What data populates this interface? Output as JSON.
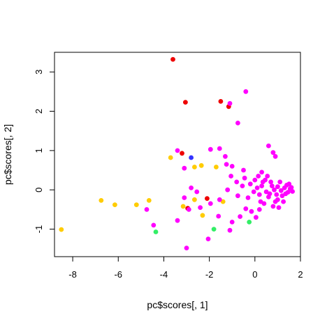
{
  "chart_data": {
    "type": "scatter",
    "title": "",
    "xlabel": "pc$scores[, 1]",
    "ylabel": "pc$scores[, 2]",
    "xlim": [
      -8.8,
      2.0
    ],
    "ylim": [
      -1.7,
      3.5
    ],
    "xticks": [
      -8,
      -6,
      -4,
      -2,
      0,
      2
    ],
    "yticks": [
      -1,
      0,
      1,
      2,
      3
    ],
    "grid": false,
    "legend": "none",
    "colors": {
      "magenta": "#ff00ff",
      "red": "#ee0000",
      "gold": "#ffcc00",
      "blue": "#3333ff",
      "green": "#33ee66"
    },
    "series": [
      {
        "color": "red",
        "points": [
          [
            -3.6,
            3.32
          ],
          [
            -3.05,
            2.23
          ],
          [
            -1.5,
            2.25
          ],
          [
            -1.15,
            2.12
          ],
          [
            -3.2,
            0.93
          ],
          [
            -2.1,
            -0.22
          ],
          [
            -2.95,
            -0.47
          ]
        ]
      },
      {
        "color": "blue",
        "points": [
          [
            -2.8,
            0.82
          ]
        ]
      },
      {
        "color": "green",
        "points": [
          [
            -4.35,
            -1.07
          ],
          [
            -1.8,
            -1.0
          ],
          [
            -0.25,
            -0.82
          ]
        ]
      },
      {
        "color": "gold",
        "points": [
          [
            -8.5,
            -1.01
          ],
          [
            -6.75,
            -0.27
          ],
          [
            -6.15,
            -0.38
          ],
          [
            -5.2,
            -0.38
          ],
          [
            -4.65,
            -0.27
          ],
          [
            -3.7,
            0.82
          ],
          [
            -3.15,
            -0.42
          ],
          [
            -2.65,
            0.58
          ],
          [
            -2.35,
            0.62
          ],
          [
            -1.7,
            0.58
          ],
          [
            -2.65,
            -0.25
          ],
          [
            -2.3,
            -0.65
          ],
          [
            -1.4,
            -0.3
          ]
        ]
      },
      {
        "color": "magenta",
        "points": [
          [
            -0.4,
            2.5
          ],
          [
            -1.1,
            2.2
          ],
          [
            -0.75,
            1.7
          ],
          [
            -3.4,
            1.0
          ],
          [
            -3.0,
            -1.48
          ],
          [
            -2.05,
            -1.25
          ],
          [
            -1.95,
            1.03
          ],
          [
            -1.55,
            1.05
          ],
          [
            -1.3,
            0.85
          ],
          [
            -1.25,
            0.65
          ],
          [
            -1.0,
            0.6
          ],
          [
            -0.5,
            0.5
          ],
          [
            0.6,
            1.12
          ],
          [
            0.8,
            0.95
          ],
          [
            0.9,
            0.85
          ],
          [
            -3.1,
            0.55
          ],
          [
            -2.8,
            0.05
          ],
          [
            -2.55,
            -0.05
          ],
          [
            -3.1,
            -0.2
          ],
          [
            -2.9,
            -0.5
          ],
          [
            -3.4,
            -0.78
          ],
          [
            -2.4,
            -0.45
          ],
          [
            -1.95,
            -0.35
          ],
          [
            -1.55,
            -0.25
          ],
          [
            -4.75,
            -0.5
          ],
          [
            -4.45,
            -0.9
          ],
          [
            -1.6,
            -0.67
          ],
          [
            -1.1,
            -1.03
          ],
          [
            -1.0,
            -0.82
          ],
          [
            -0.65,
            -0.68
          ],
          [
            -0.4,
            -0.48
          ],
          [
            -0.15,
            -0.55
          ],
          [
            -1.2,
            0.0
          ],
          [
            -1.05,
            0.35
          ],
          [
            -0.8,
            0.2
          ],
          [
            -0.55,
            0.1
          ],
          [
            -0.3,
            -0.2
          ],
          [
            -0.75,
            -0.15
          ],
          [
            -0.45,
            0.3
          ],
          [
            0.0,
            0.25
          ],
          [
            0.3,
            0.45
          ],
          [
            0.05,
            -0.7
          ],
          [
            0.2,
            -0.5
          ],
          [
            0.4,
            -0.35
          ],
          [
            0.6,
            -0.18
          ],
          [
            0.8,
            -0.42
          ],
          [
            1.0,
            -0.25
          ],
          [
            1.05,
            -0.45
          ],
          [
            0.1,
            0.05
          ],
          [
            0.3,
            0.1
          ],
          [
            0.5,
            -0.05
          ],
          [
            0.7,
            0.2
          ],
          [
            0.85,
            0.0
          ],
          [
            1.0,
            0.08
          ],
          [
            1.15,
            -0.02
          ],
          [
            1.3,
            0.05
          ],
          [
            1.45,
            -0.06
          ],
          [
            1.55,
            0.03
          ],
          [
            1.65,
            -0.04
          ],
          [
            0.45,
            0.25
          ],
          [
            0.65,
            -0.1
          ],
          [
            0.95,
            -0.12
          ],
          [
            1.2,
            -0.15
          ],
          [
            1.4,
            0.12
          ],
          [
            1.6,
            0.06
          ],
          [
            0.2,
            -0.12
          ],
          [
            0.35,
            0.2
          ],
          [
            0.75,
            0.1
          ],
          [
            1.1,
            0.2
          ],
          [
            1.35,
            -0.1
          ],
          [
            1.5,
            0.15
          ],
          [
            0.55,
            0.35
          ],
          [
            0.25,
            -0.3
          ],
          [
            -0.05,
            -0.05
          ],
          [
            -0.2,
            0.15
          ],
          [
            0.15,
            0.35
          ],
          [
            0.9,
            -0.3
          ],
          [
            1.25,
            -0.3
          ]
        ]
      }
    ]
  }
}
